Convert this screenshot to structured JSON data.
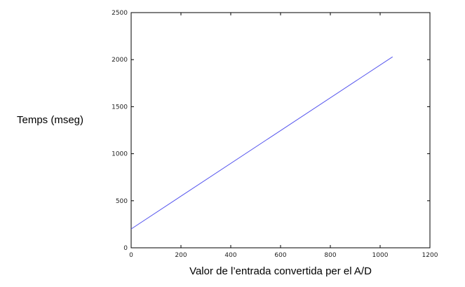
{
  "chart_data": {
    "type": "line",
    "xlabel": "Valor de l’entrada convertida per el A/D",
    "ylabel": "Temps (mseg)",
    "xlim": [
      0,
      1200
    ],
    "ylim": [
      0,
      2500
    ],
    "xticks": [
      0,
      200,
      400,
      600,
      800,
      1000,
      1200
    ],
    "yticks": [
      0,
      500,
      1000,
      1500,
      2000,
      2500
    ],
    "grid": false,
    "series": [
      {
        "color": "#5555ee",
        "x": [
          0,
          1050
        ],
        "y": [
          200,
          2030
        ]
      }
    ]
  }
}
